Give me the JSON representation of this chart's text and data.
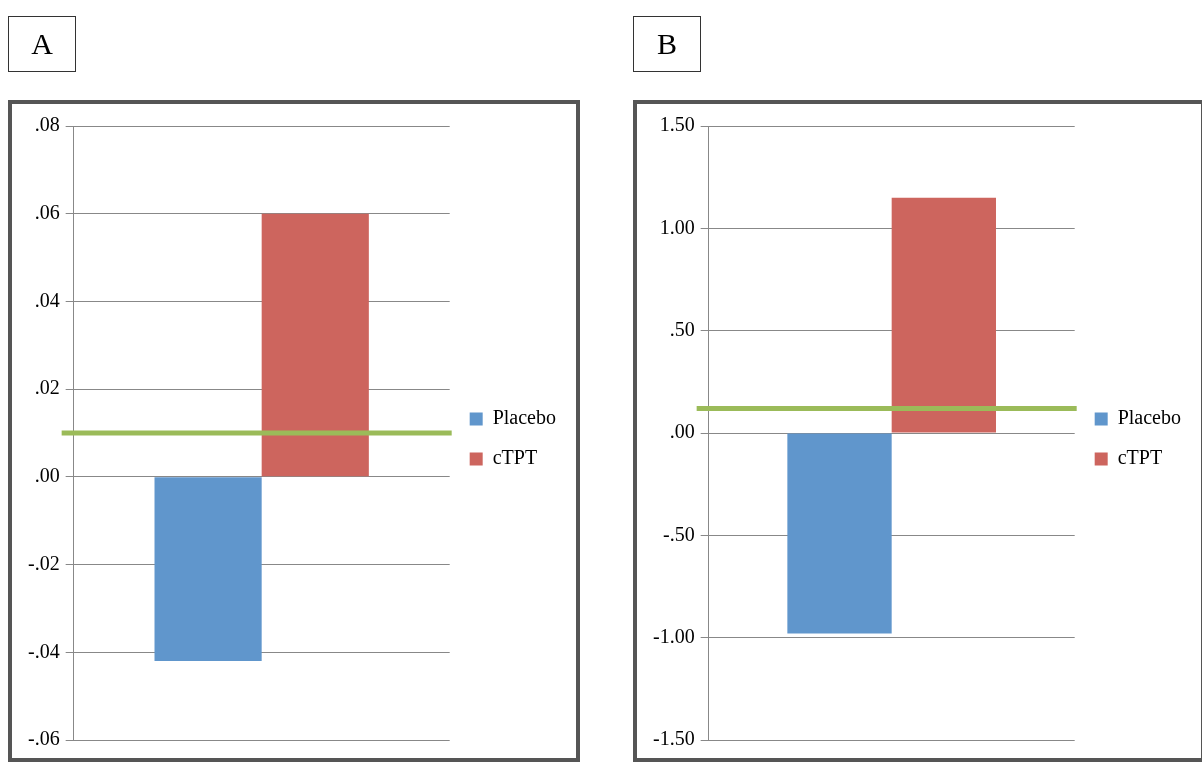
{
  "chart_data": [
    {
      "type": "bar",
      "title": "A",
      "categories": [
        null
      ],
      "series": [
        {
          "name": "Placebo",
          "color": "#6096cc",
          "values": [
            -0.042
          ]
        },
        {
          "name": "cTPT",
          "color": "#cd655e",
          "values": [
            0.06
          ]
        }
      ],
      "ylim": [
        -0.06,
        0.08
      ],
      "yticks": [
        {
          "value": -0.06,
          "label": "-.06"
        },
        {
          "value": -0.04,
          "label": "-.04"
        },
        {
          "value": -0.02,
          "label": "-.02"
        },
        {
          "value": 0,
          "label": ".00"
        },
        {
          "value": 0.02,
          "label": ".02"
        },
        {
          "value": 0.04,
          "label": ".04"
        },
        {
          "value": 0.06,
          "label": ".06"
        },
        {
          "value": 0.08,
          "label": ".08"
        }
      ],
      "ref_lines": [
        {
          "axis": "y",
          "value": 0.01,
          "color": "#9bbb59"
        }
      ],
      "grid": "y",
      "legend": "right",
      "tick_labels": "y"
    },
    {
      "type": "bar",
      "title": "B",
      "categories": [
        null
      ],
      "series": [
        {
          "name": "Placebo",
          "color": "#6096cc",
          "values": [
            -0.98
          ]
        },
        {
          "name": "cTPT",
          "color": "#cd655e",
          "values": [
            1.15
          ]
        }
      ],
      "ylim": [
        -1.5,
        1.5
      ],
      "yticks": [
        {
          "value": -1.5,
          "label": "-1.50"
        },
        {
          "value": -1,
          "label": "-1.00"
        },
        {
          "value": -0.5,
          "label": "-.50"
        },
        {
          "value": 0,
          "label": ".00"
        },
        {
          "value": 0.5,
          "label": ".50"
        },
        {
          "value": 1,
          "label": "1.00"
        },
        {
          "value": 1.5,
          "label": "1.50"
        }
      ],
      "ref_lines": [
        {
          "axis": "y",
          "value": 0.12,
          "color": "#9bbb59"
        }
      ],
      "grid": "y",
      "legend": "right",
      "tick_labels": "y"
    }
  ]
}
